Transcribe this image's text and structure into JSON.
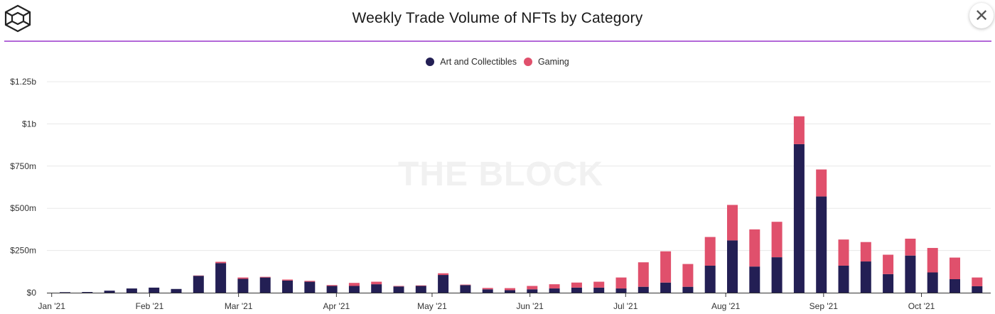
{
  "header": {
    "title": "Weekly Trade Volume of NFTs by Category",
    "close_label": "✕"
  },
  "watermark": "THE BLOCK",
  "colors": {
    "art": "#231f54",
    "gaming": "#e0506c",
    "accent": "#b368d8",
    "grid": "#e8e8e8"
  },
  "legend": [
    {
      "label": "Art and Collectibles",
      "color": "#231f54"
    },
    {
      "label": "Gaming",
      "color": "#e0506c"
    }
  ],
  "chart_data": {
    "type": "bar",
    "stacked": true,
    "title": "Weekly Trade Volume of NFTs by Category",
    "units": "USD millions",
    "ylim": [
      0,
      1250
    ],
    "yticks": [
      {
        "value": 0,
        "label": "$0"
      },
      {
        "value": 250,
        "label": "$250m"
      },
      {
        "value": 500,
        "label": "$500m"
      },
      {
        "value": 750,
        "label": "$750m"
      },
      {
        "value": 1000,
        "label": "$1b"
      },
      {
        "value": 1250,
        "label": "$1.25b"
      }
    ],
    "xticks": [
      {
        "week": -0.6,
        "label": "Jan '21"
      },
      {
        "week": 3.8,
        "label": "Feb '21"
      },
      {
        "week": 7.8,
        "label": "Mar '21"
      },
      {
        "week": 12.2,
        "label": "Apr '21"
      },
      {
        "week": 16.5,
        "label": "May '21"
      },
      {
        "week": 20.9,
        "label": "Jun '21"
      },
      {
        "week": 25.2,
        "label": "Jul '21"
      },
      {
        "week": 29.7,
        "label": "Aug '21"
      },
      {
        "week": 34.1,
        "label": "Sep '21"
      },
      {
        "week": 38.5,
        "label": "Oct '21"
      }
    ],
    "series": [
      {
        "name": "Art and Collectibles",
        "values": [
          3,
          4,
          12,
          25,
          30,
          22,
          100,
          175,
          82,
          90,
          72,
          65,
          40,
          40,
          50,
          37,
          40,
          105,
          45,
          20,
          15,
          20,
          25,
          30,
          30,
          25,
          35,
          60,
          35,
          160,
          310,
          155,
          210,
          880,
          570,
          160,
          185,
          110,
          220,
          120,
          80,
          38
        ]
      },
      {
        "name": "Gaming",
        "values": [
          0,
          0,
          0,
          0,
          0,
          0,
          2,
          8,
          8,
          4,
          6,
          5,
          5,
          18,
          15,
          3,
          3,
          10,
          3,
          8,
          12,
          20,
          25,
          30,
          35,
          65,
          145,
          185,
          135,
          170,
          210,
          220,
          210,
          165,
          160,
          155,
          115,
          115,
          100,
          145,
          128,
          52
        ]
      }
    ]
  }
}
